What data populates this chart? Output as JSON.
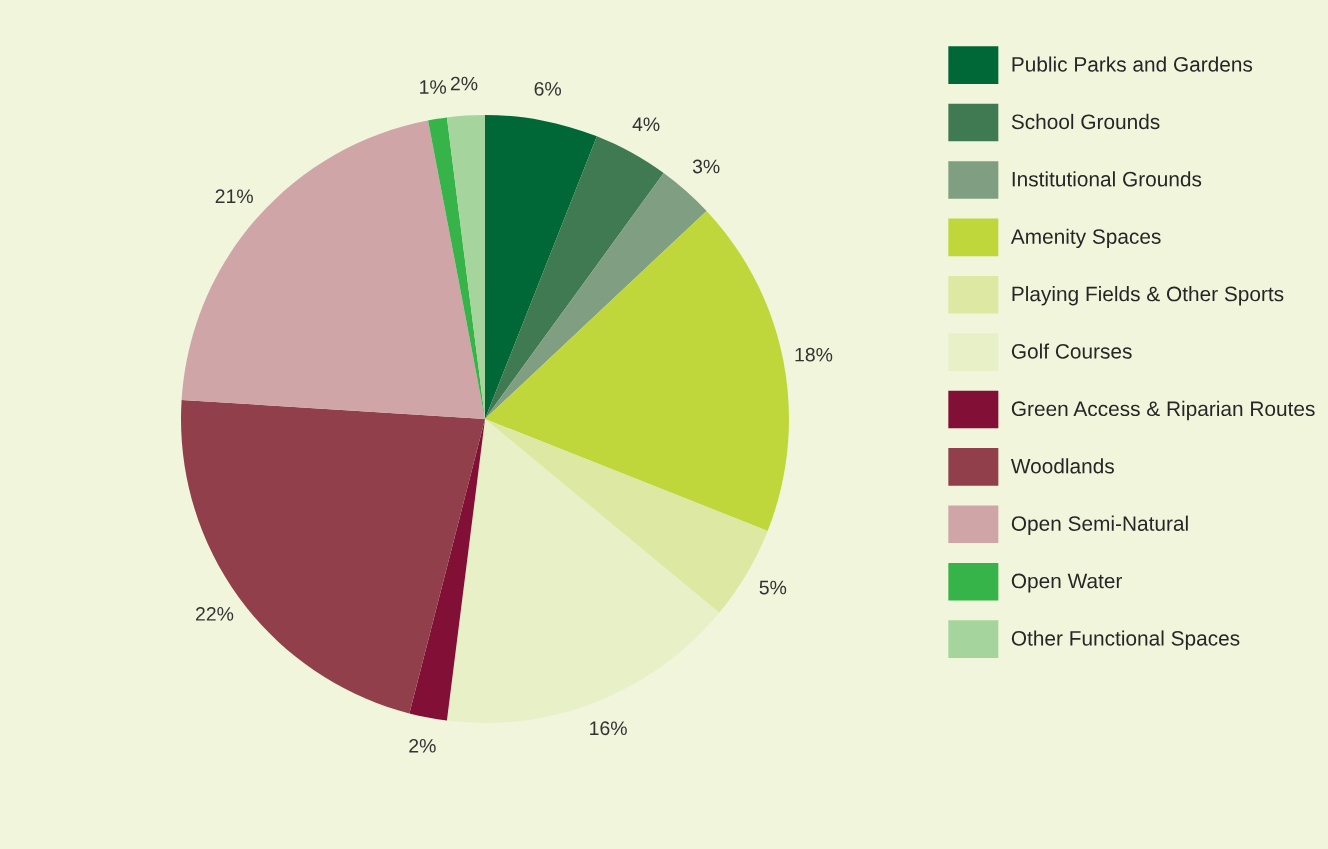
{
  "chart_data": {
    "type": "pie",
    "categories": [
      "Public Parks and Gardens",
      "School Grounds",
      "Institutional Grounds",
      "Amenity Spaces",
      "Playing Fields & Other Sports",
      "Golf Courses",
      "Green Access & Riparian Routes",
      "Woodlands",
      "Open Semi-Natural",
      "Open Water",
      "Other Functional Spaces"
    ],
    "values": [
      6,
      4,
      3,
      18,
      5,
      16,
      2,
      22,
      21,
      1,
      2
    ],
    "value_labels": [
      "6%",
      "4%",
      "3%",
      "18%",
      "5%",
      "16%",
      "2%",
      "22%",
      "21%",
      "1%",
      "2%"
    ],
    "colors": [
      "#006837",
      "#3f7a53",
      "#7f9e82",
      "#bfd73a",
      "#dde8a2",
      "#e8f0c8",
      "#820f35",
      "#913f4b",
      "#cfa5a7",
      "#36b449",
      "#a5d49c"
    ],
    "legend": "right"
  }
}
